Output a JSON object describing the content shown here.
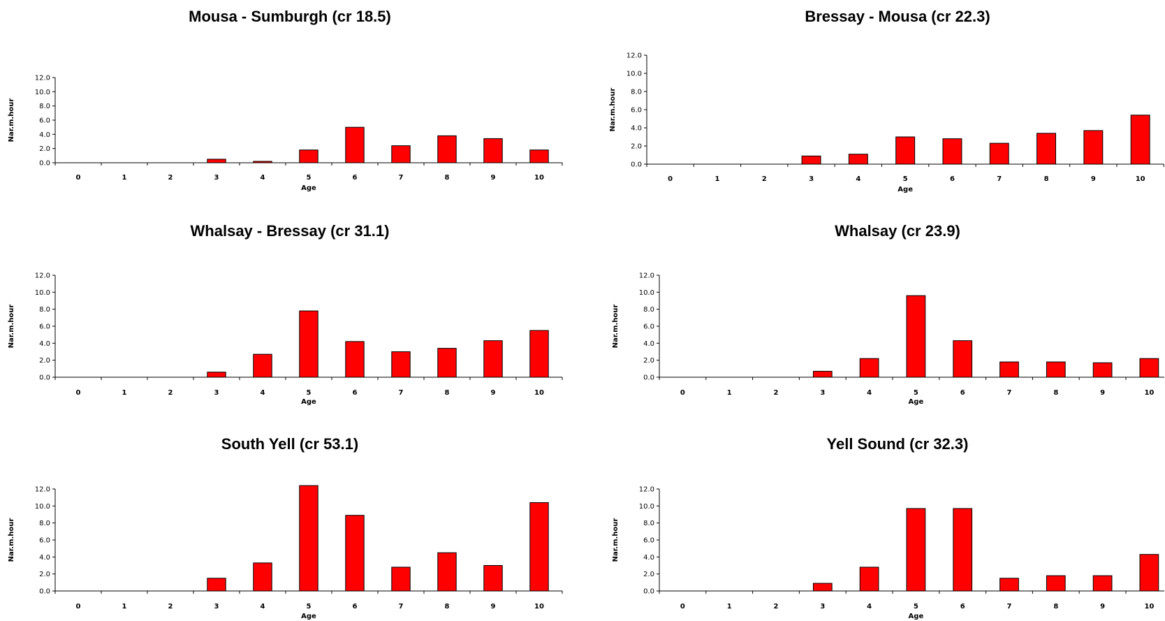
{
  "colors": {
    "bar": "#ff0000",
    "bar_stroke": "#000000",
    "axis": "#000000",
    "background": "#ffffff"
  },
  "chart_data": [
    {
      "type": "bar",
      "title": "Mousa - Sumburgh  (cr 18.5)",
      "xlabel": "Age",
      "ylabel": "Nar.m.hour",
      "categories": [
        "0",
        "1",
        "2",
        "3",
        "4",
        "5",
        "6",
        "7",
        "8",
        "9",
        "10"
      ],
      "values": [
        0,
        0,
        0,
        0.5,
        0.2,
        1.8,
        5.0,
        2.4,
        3.8,
        3.4,
        1.8
      ],
      "ylim": [
        0,
        12
      ],
      "yticks": [
        "0.0",
        "2.0",
        "4.0",
        "6.0",
        "8.0",
        "10.0",
        "12.0"
      ],
      "grid": false,
      "legend": "none"
    },
    {
      "type": "bar",
      "title": "Bressay - Mousa   (cr 22.3)",
      "xlabel": "Age",
      "ylabel": "Nar.m.hour",
      "categories": [
        "0",
        "1",
        "2",
        "3",
        "4",
        "5",
        "6",
        "7",
        "8",
        "9",
        "10"
      ],
      "values": [
        0,
        0,
        0,
        0.9,
        1.1,
        3.0,
        2.8,
        2.3,
        3.4,
        3.7,
        5.4
      ],
      "ylim": [
        0,
        12
      ],
      "yticks": [
        "0.0",
        "2.0",
        "4.0",
        "6.0",
        "8.0",
        "10.0",
        "12.0"
      ],
      "grid": false,
      "legend": "none"
    },
    {
      "type": "bar",
      "title": "Whalsay - Bressay   (cr 31.1)",
      "xlabel": "Age",
      "ylabel": "Nar.m.hour",
      "categories": [
        "0",
        "1",
        "2",
        "3",
        "4",
        "5",
        "6",
        "7",
        "8",
        "9",
        "10"
      ],
      "values": [
        0,
        0,
        0,
        0.6,
        2.7,
        7.8,
        4.2,
        3.0,
        3.4,
        4.3,
        5.5
      ],
      "ylim": [
        0,
        12
      ],
      "yticks": [
        "0.0",
        "2.0",
        "4.0",
        "6.0",
        "8.0",
        "10.0",
        "12.0"
      ],
      "grid": false,
      "legend": "none"
    },
    {
      "type": "bar",
      "title": "Whalsay   (cr 23.9)",
      "xlabel": "Age",
      "ylabel": "Nar.m.hour",
      "categories": [
        "0",
        "1",
        "2",
        "3",
        "4",
        "5",
        "6",
        "7",
        "8",
        "9",
        "10"
      ],
      "values": [
        0,
        0,
        0,
        0.7,
        2.2,
        9.6,
        4.3,
        1.8,
        1.8,
        1.7,
        2.2
      ],
      "ylim": [
        0,
        12
      ],
      "yticks": [
        "0.0",
        "2.0",
        "4.0",
        "6.0",
        "8.0",
        "10.0",
        "12.0"
      ],
      "grid": false,
      "legend": "none"
    },
    {
      "type": "bar",
      "title": "South Yell   (cr 53.1)",
      "xlabel": "Age",
      "ylabel": "Nar.m.hour",
      "categories": [
        "0",
        "1",
        "2",
        "3",
        "4",
        "5",
        "6",
        "7",
        "8",
        "9",
        "10"
      ],
      "values": [
        0,
        0,
        0,
        1.5,
        3.3,
        12.4,
        8.9,
        2.8,
        4.5,
        3.0,
        10.4
      ],
      "ylim": [
        0,
        12
      ],
      "yticks": [
        "0.0",
        "2.0",
        "4.0",
        "6.0",
        "8.0",
        "10.0",
        "12.0"
      ],
      "grid": false,
      "legend": "none"
    },
    {
      "type": "bar",
      "title": "Yell Sound   (cr 32.3)",
      "xlabel": "Age",
      "ylabel": "Nar.m.hour",
      "categories": [
        "0",
        "1",
        "2",
        "3",
        "4",
        "5",
        "6",
        "7",
        "8",
        "9",
        "10"
      ],
      "values": [
        0,
        0,
        0,
        0.9,
        2.8,
        9.7,
        9.7,
        1.5,
        1.8,
        1.8,
        4.3
      ],
      "ylim": [
        0,
        12
      ],
      "yticks": [
        "0.0",
        "2.0",
        "4.0",
        "6.0",
        "8.0",
        "10.0",
        "12.0"
      ],
      "grid": false,
      "legend": "none"
    }
  ]
}
